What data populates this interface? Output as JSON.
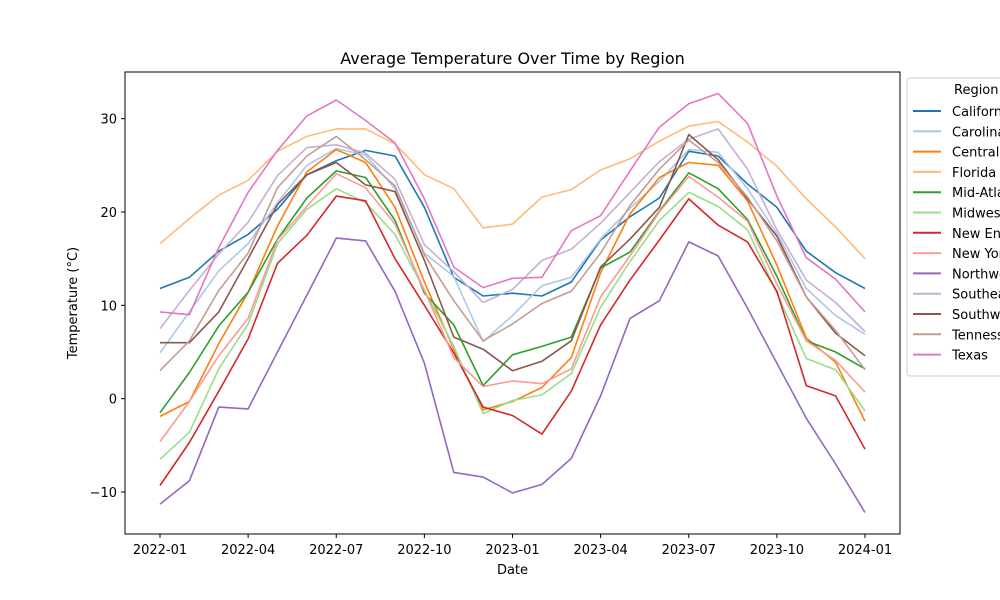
{
  "chart_data": {
    "type": "line",
    "title": "Average Temperature Over Time by Region",
    "xlabel": "Date",
    "ylabel": "Temperature (°C)",
    "ylim": [
      -14.5,
      35
    ],
    "yticks": [
      -10,
      0,
      10,
      20,
      30
    ],
    "xticks": [
      "2022-01",
      "2022-04",
      "2022-07",
      "2022-10",
      "2023-01",
      "2023-04",
      "2023-07",
      "2023-10",
      "2024-01"
    ],
    "grid": false,
    "legend": {
      "title": "Region",
      "placement": "upper right, outside plot"
    },
    "x": [
      "2022-01",
      "2022-02",
      "2022-03",
      "2022-04",
      "2022-05",
      "2022-06",
      "2022-07",
      "2022-08",
      "2022-09",
      "2022-10",
      "2022-11",
      "2022-12",
      "2023-01",
      "2023-02",
      "2023-03",
      "2023-04",
      "2023-05",
      "2023-06",
      "2023-07",
      "2023-08",
      "2023-09",
      "2023-10",
      "2023-11",
      "2023-12",
      "2024-01"
    ],
    "series": [
      {
        "name": "California",
        "color": "#1f77b4",
        "values": [
          11.8,
          13.0,
          15.8,
          17.6,
          20.3,
          24.0,
          25.5,
          26.6,
          26.0,
          20.5,
          13.0,
          11.0,
          11.3,
          11.0,
          12.5,
          17.0,
          19.5,
          21.5,
          26.5,
          26.0,
          23.0,
          20.5,
          15.8,
          13.5,
          11.8
        ]
      },
      {
        "name": "Carolinas",
        "color": "#aec7e8",
        "values": [
          4.9,
          9.3,
          13.7,
          16.6,
          21.0,
          25.0,
          26.8,
          26.1,
          22.5,
          15.6,
          13.1,
          6.1,
          8.9,
          12.1,
          13.0,
          17.1,
          20.4,
          23.3,
          26.7,
          26.4,
          22.5,
          17.7,
          11.8,
          8.9,
          6.9
        ]
      },
      {
        "name": "Central",
        "color": "#ff7f0e",
        "values": [
          -1.9,
          -0.3,
          5.9,
          11.4,
          18.5,
          24.3,
          26.7,
          25.3,
          20.5,
          12.5,
          5.3,
          -1.2,
          -0.3,
          1.2,
          4.4,
          13.5,
          19.8,
          23.7,
          25.3,
          25.0,
          21.2,
          14.3,
          6.5,
          3.9,
          -2.4
        ]
      },
      {
        "name": "Florida",
        "color": "#ffbb78",
        "values": [
          16.6,
          19.3,
          21.8,
          23.4,
          26.5,
          28.1,
          28.9,
          28.9,
          27.3,
          24.0,
          22.5,
          18.3,
          18.7,
          21.6,
          22.4,
          24.5,
          25.7,
          27.6,
          29.2,
          29.7,
          27.5,
          24.9,
          21.4,
          18.4,
          15.0
        ]
      },
      {
        "name": "Mid-Atlantic",
        "color": "#2ca02c",
        "values": [
          -1.5,
          2.8,
          7.8,
          11.4,
          17.1,
          21.5,
          24.4,
          23.7,
          19.1,
          11.3,
          7.9,
          1.4,
          4.7,
          5.6,
          6.6,
          14.0,
          15.7,
          20.1,
          24.2,
          22.5,
          19.2,
          13.1,
          6.2,
          5.0,
          3.2
        ]
      },
      {
        "name": "Midwest",
        "color": "#98df8a",
        "values": [
          -6.5,
          -3.6,
          3.2,
          8.0,
          16.6,
          20.3,
          22.5,
          21.0,
          17.6,
          11.6,
          5.6,
          -1.6,
          -0.2,
          0.4,
          2.7,
          9.8,
          14.7,
          19.1,
          22.1,
          20.6,
          18.1,
          11.3,
          4.3,
          3.1,
          -1.3
        ]
      },
      {
        "name": "New England",
        "color": "#d62728",
        "values": [
          -9.3,
          -4.7,
          0.8,
          6.4,
          14.5,
          17.5,
          21.7,
          21.2,
          15.0,
          10.0,
          4.9,
          -0.9,
          -1.8,
          -3.8,
          0.8,
          7.9,
          12.7,
          17.0,
          21.4,
          18.6,
          16.8,
          11.5,
          1.4,
          0.3,
          -5.4
        ]
      },
      {
        "name": "New York",
        "color": "#ff9896",
        "values": [
          -4.6,
          -0.3,
          4.6,
          8.6,
          17.0,
          20.6,
          24.1,
          22.6,
          18.7,
          11.6,
          4.4,
          1.3,
          1.9,
          1.6,
          3.2,
          10.9,
          15.3,
          20.0,
          23.8,
          21.6,
          19.0,
          12.3,
          6.2,
          4.1,
          0.7
        ]
      },
      {
        "name": "Northwest",
        "color": "#9467bd",
        "values": [
          -11.3,
          -8.8,
          -0.9,
          -1.1,
          5.0,
          11.1,
          17.2,
          16.9,
          11.5,
          3.8,
          -7.9,
          -8.4,
          -10.1,
          -9.2,
          -6.4,
          0.3,
          8.6,
          10.5,
          16.8,
          15.3,
          9.7,
          3.8,
          -2.1,
          -7.0,
          -12.2
        ]
      },
      {
        "name": "Southeast",
        "color": "#c5b0d5",
        "values": [
          7.5,
          11.6,
          15.5,
          18.9,
          23.9,
          26.9,
          27.2,
          26.3,
          23.5,
          16.5,
          13.6,
          10.3,
          11.7,
          14.8,
          16.0,
          18.8,
          22.1,
          25.4,
          27.8,
          28.9,
          24.6,
          18.1,
          12.7,
          10.3,
          7.2
        ]
      },
      {
        "name": "Southwest",
        "color": "#8c564b",
        "values": [
          6.0,
          6.0,
          9.3,
          15.0,
          20.8,
          24.0,
          25.3,
          22.9,
          22.2,
          14.8,
          6.6,
          5.3,
          3.0,
          4.0,
          6.2,
          14.1,
          17.1,
          20.5,
          28.3,
          25.6,
          21.4,
          17.4,
          10.9,
          7.0,
          4.6
        ]
      },
      {
        "name": "Tennessee",
        "color": "#c49c94",
        "values": [
          3.0,
          6.2,
          11.6,
          15.6,
          22.6,
          26.0,
          28.1,
          25.6,
          22.8,
          15.4,
          10.5,
          6.2,
          8.0,
          10.2,
          11.5,
          15.6,
          20.7,
          24.6,
          27.7,
          25.3,
          21.6,
          16.9,
          10.9,
          7.3,
          3.1
        ]
      },
      {
        "name": "Texas",
        "color": "#e377c2",
        "values": [
          9.3,
          9.0,
          16.2,
          22.1,
          26.6,
          30.3,
          32.0,
          29.8,
          27.4,
          21.4,
          14.1,
          11.9,
          12.9,
          13.0,
          18.0,
          19.6,
          24.4,
          29.1,
          31.6,
          32.7,
          29.5,
          21.7,
          15.1,
          12.8,
          9.3
        ]
      }
    ]
  }
}
